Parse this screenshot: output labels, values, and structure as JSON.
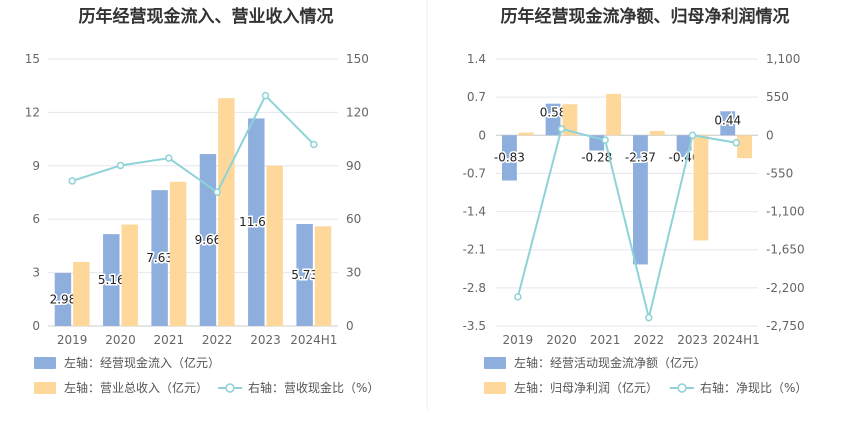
{
  "chart_data": [
    {
      "type": "bar",
      "title": "历年经营现金流入、营业收入情况",
      "categories": [
        "2019",
        "2020",
        "2021",
        "2022",
        "2023",
        "2024H1"
      ],
      "left_axis": {
        "min": 0,
        "max": 15,
        "ticks": [
          "0",
          "3",
          "6",
          "9",
          "12",
          "15"
        ]
      },
      "right_axis": {
        "min": 0,
        "max": 150,
        "ticks": [
          "0",
          "30",
          "60",
          "90",
          "120",
          "150"
        ]
      },
      "series": [
        {
          "name": "左轴：经营现金流入（亿元）",
          "kind": "bar",
          "axis": "left",
          "color": "#8eaedd",
          "values": [
            2.98,
            5.16,
            7.63,
            9.66,
            11.66,
            5.73
          ],
          "labels": [
            "2.98",
            "5.16",
            "7.63",
            "9.66",
            "11.66",
            "5.73"
          ]
        },
        {
          "name": "左轴：营业总收入（亿元）",
          "kind": "bar",
          "axis": "left",
          "color": "#fdd89a",
          "values": [
            3.6,
            5.7,
            8.1,
            12.8,
            9.0,
            5.6
          ]
        },
        {
          "name": "右轴：营收现金比（%）",
          "kind": "line",
          "axis": "right",
          "color": "#8dd3d8",
          "values": [
            81.5,
            90.2,
            94.3,
            75.2,
            129.4,
            102.0
          ]
        }
      ]
    },
    {
      "type": "bar",
      "title": "历年经营现金流净额、归母净利润情况",
      "categories": [
        "2019",
        "2020",
        "2021",
        "2022",
        "2023",
        "2024H1"
      ],
      "left_axis": {
        "min": -3.5,
        "max": 1.4,
        "ticks": [
          "-3.5",
          "-2.8",
          "-2.1",
          "-1.4",
          "-0.7",
          "0",
          "0.7",
          "1.4"
        ]
      },
      "right_axis": {
        "min": -2750,
        "max": 1100,
        "ticks": [
          "-2,750",
          "-2,200",
          "-1,650",
          "-1,100",
          "-550",
          "0",
          "550",
          "1,100"
        ]
      },
      "series": [
        {
          "name": "左轴：经营活动现金流净额（亿元）",
          "kind": "bar",
          "axis": "left",
          "color": "#8eaedd",
          "values": [
            -0.83,
            0.58,
            -0.28,
            -2.37,
            -0.4,
            0.44
          ],
          "labels": [
            "-0.83",
            "0.58",
            "-0.28",
            "-2.37",
            "-0.40",
            "0.44"
          ]
        },
        {
          "name": "左轴：归母净利润（亿元）",
          "kind": "bar",
          "axis": "left",
          "color": "#fdd89a",
          "values": [
            0.05,
            0.57,
            0.76,
            0.08,
            -1.93,
            -0.42
          ]
        },
        {
          "name": "右轴：净现比（%）",
          "kind": "line",
          "axis": "right",
          "color": "#8dd3d8",
          "values": [
            -2330,
            93,
            -70,
            -2630,
            0,
            -107
          ]
        }
      ]
    }
  ]
}
